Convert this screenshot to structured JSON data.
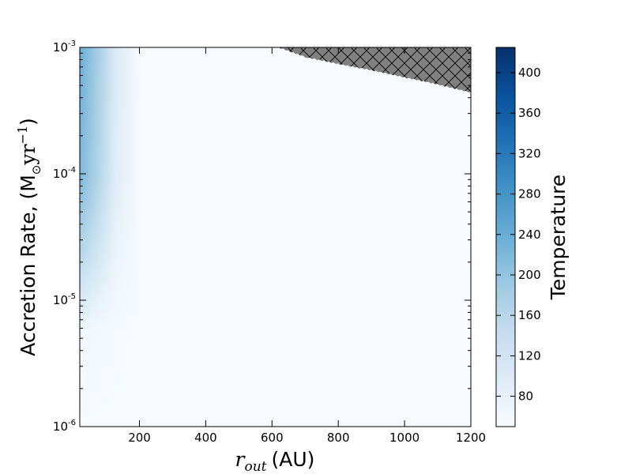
{
  "chart_data": {
    "type": "heatmap",
    "title": "",
    "xlabel": {
      "symbol": "r",
      "subscript": "out",
      "unit": "(AU)"
    },
    "ylabel": {
      "text": "Accretion Rate, (M",
      "sun_symbol": "⊙",
      "unit_text": "yr",
      "unit_exponent": "−1",
      "close": ")"
    },
    "xlim": [
      20,
      1200
    ],
    "ylim": [
      1e-06,
      0.001
    ],
    "yscale": "log",
    "x_ticks": [
      200,
      400,
      600,
      800,
      1000,
      1200
    ],
    "x_tick_labels": [
      "200",
      "400",
      "600",
      "800",
      "1000",
      "1200"
    ],
    "y_ticks": [
      1e-06,
      1e-05,
      0.0001,
      0.001
    ],
    "y_tick_labels": [
      {
        "base": "10",
        "exp": "-6"
      },
      {
        "base": "10",
        "exp": "-5"
      },
      {
        "base": "10",
        "exp": "-4"
      },
      {
        "base": "10",
        "exp": "-3"
      }
    ],
    "colorbar": {
      "label": "Temperature",
      "range": [
        50,
        425
      ],
      "ticks": [
        80,
        120,
        160,
        200,
        240,
        280,
        320,
        360,
        400
      ],
      "tick_labels": [
        "80",
        "120",
        "160",
        "200",
        "240",
        "280",
        "320",
        "360",
        "400"
      ],
      "colormap": "Blues",
      "colormap_stops": [
        "#f7fbff",
        "#deebf7",
        "#c6dbef",
        "#9ecae1",
        "#6baed6",
        "#4292c6",
        "#2171b5",
        "#08519c",
        "#08306b"
      ]
    },
    "temperature_field": {
      "description": "warm band only at small r_out; rises with accretion rate",
      "samples": [
        {
          "x": 20,
          "y": 0.001,
          "T": 240
        },
        {
          "x": 20,
          "y": 0.0001,
          "T": 180
        },
        {
          "x": 20,
          "y": 1e-05,
          "T": 110
        },
        {
          "x": 50,
          "y": 0.001,
          "T": 200
        },
        {
          "x": 50,
          "y": 0.0001,
          "T": 130
        },
        {
          "x": 100,
          "y": 0.001,
          "T": 120
        },
        {
          "x": 200,
          "y": 0.0001,
          "T": 55
        },
        {
          "x": 800,
          "y": 1e-05,
          "T": 50
        }
      ]
    },
    "hatched_region": {
      "description": "excluded region (upper right), gray with cross-hatch",
      "boundary": [
        {
          "x": 620,
          "y": 0.001
        },
        {
          "x": 700,
          "y": 0.00084
        },
        {
          "x": 800,
          "y": 0.00074
        },
        {
          "x": 900,
          "y": 0.00066
        },
        {
          "x": 1000,
          "y": 0.00058
        },
        {
          "x": 1100,
          "y": 0.00051
        },
        {
          "x": 1200,
          "y": 0.00044
        }
      ],
      "fill": "#808080"
    },
    "grid": false,
    "legend": "none"
  }
}
